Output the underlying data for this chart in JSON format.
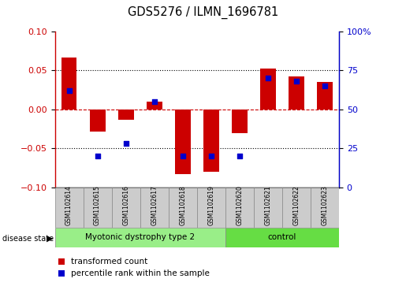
{
  "title": "GDS5276 / ILMN_1696781",
  "samples": [
    "GSM1102614",
    "GSM1102615",
    "GSM1102616",
    "GSM1102617",
    "GSM1102618",
    "GSM1102619",
    "GSM1102620",
    "GSM1102621",
    "GSM1102622",
    "GSM1102623"
  ],
  "red_values": [
    0.067,
    -0.028,
    -0.013,
    0.01,
    -0.083,
    -0.08,
    -0.03,
    0.052,
    0.042,
    0.035
  ],
  "blue_pct": [
    62,
    20,
    28,
    55,
    20,
    20,
    20,
    70,
    68,
    65
  ],
  "ylim": [
    -0.1,
    0.1
  ],
  "yticks_left": [
    -0.1,
    -0.05,
    0.0,
    0.05,
    0.1
  ],
  "right_tick_positions": [
    -0.1,
    -0.05,
    0.0,
    0.05,
    0.1
  ],
  "right_tick_labels": [
    "0",
    "25",
    "50",
    "75",
    "100%"
  ],
  "group1_label": "Myotonic dystrophy type 2",
  "group1_count": 6,
  "group2_label": "control",
  "group2_count": 4,
  "disease_state_label": "disease state",
  "legend_red": "transformed count",
  "legend_blue": "percentile rank within the sample",
  "red_color": "#cc0000",
  "blue_color": "#0000cc",
  "group1_bg": "#99ee88",
  "group2_bg": "#66dd44",
  "sample_bg": "#cccccc",
  "zero_line_color": "#cc0000",
  "dot_size": 25
}
